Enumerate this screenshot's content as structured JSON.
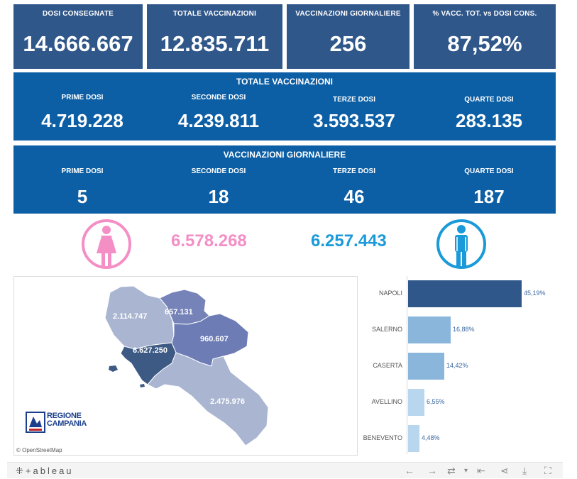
{
  "kpis": [
    {
      "label": "DOSI  CONSEGNATE",
      "value": "14.666.667"
    },
    {
      "label": "TOTALE VACCINAZIONI",
      "value": "12.835.711"
    },
    {
      "label": "VACCINAZIONI GIORNALIERE",
      "value": "256"
    },
    {
      "label": "% VACC. TOT. vs DOSI CONS.",
      "value": "87,52%"
    }
  ],
  "totale": {
    "title": "TOTALE VACCINAZIONI",
    "items": [
      {
        "label": "PRIME DOSI",
        "value": "4.719.228"
      },
      {
        "label": "SECONDE DOSI",
        "value": "4.239.811"
      },
      {
        "label": "TERZE DOSI",
        "value": "3.593.537"
      },
      {
        "label": "QUARTE DOSI",
        "value": "283.135"
      }
    ]
  },
  "giornaliere": {
    "title": "VACCINAZIONI GIORNALIERE",
    "items": [
      {
        "label": "PRIME DOSI",
        "value": "5"
      },
      {
        "label": "SECONDE DOSI",
        "value": "18"
      },
      {
        "label": "TERZE DOSI",
        "value": "46"
      },
      {
        "label": "QUARTE DOSI",
        "value": "187"
      }
    ]
  },
  "gender": {
    "female_value": "6.578.268",
    "male_value": "6.257.443",
    "female_color": "#f48fc6",
    "male_color": "#1a9ad9"
  },
  "map": {
    "regions": [
      {
        "name": "caserta",
        "value": "2.114.747"
      },
      {
        "name": "benevento",
        "value": "657.131"
      },
      {
        "name": "avellino",
        "value": "960.607"
      },
      {
        "name": "napoli",
        "value": "6.627.250"
      },
      {
        "name": "salerno",
        "value": "2.475.976"
      }
    ],
    "logo_line1": "REGIONE",
    "logo_line2": "CAMPANIA",
    "attribution": "© OpenStreetMap"
  },
  "chart_data": {
    "type": "bar",
    "orientation": "horizontal",
    "categories": [
      "NAPOLI",
      "SALERNO",
      "CASERTA",
      "AVELLINO",
      "BENEVENTO"
    ],
    "values": [
      45.19,
      16.88,
      14.42,
      6.55,
      4.48
    ],
    "labels": [
      "45,19%",
      "16,88%",
      "14,42%",
      "6,55%",
      "4,48%"
    ],
    "colors": [
      "#30578a",
      "#8ab6dc",
      "#8ab6dc",
      "#b8d7ee",
      "#b8d7ee"
    ]
  },
  "footer": {
    "brand": "+ableau"
  },
  "colors": {
    "kpi_bg": "#30578a",
    "panel_bg": "#0d5fa5"
  }
}
